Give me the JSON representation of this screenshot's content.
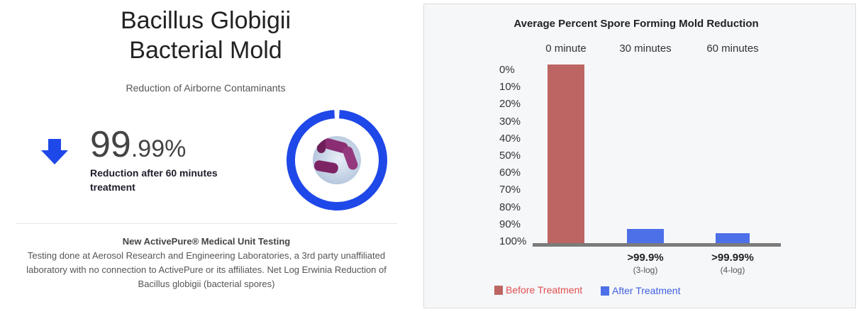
{
  "left": {
    "title_line1": "Bacillus Globigii",
    "title_line2": "Bacterial Mold",
    "subtitle": "Reduction of Airborne Contaminants",
    "stat_whole": "99",
    "stat_fraction": ".99%",
    "stat_label": "Reduction after 60 minutes treatment",
    "note_title": "New ActivePure® Medical Unit Testing",
    "note_body": "Testing done at Aerosol Research and Engineering Laboratories, a 3rd party unaffiliated laboratory with no connection to ActivePure or its affiliates. Net Log Erwinia Reduction of Bacillus globigii (bacterial spores)",
    "ring_fill_percent": 99.99,
    "colors": {
      "accent": "#1f48e8"
    }
  },
  "chart_data": {
    "type": "bar",
    "title": "Average Percent Spore Forming Mold Reduction",
    "categories": [
      "0 minute",
      "30 minutes",
      "60 minutes"
    ],
    "y_ticks": [
      "0%",
      "10%",
      "20%",
      "30%",
      "40%",
      "50%",
      "60%",
      "70%",
      "80%",
      "90%",
      "100%"
    ],
    "y_inverted": true,
    "ylim": [
      0,
      100
    ],
    "series": [
      {
        "name": "Before Treatment",
        "color": "#bd6562",
        "values": [
          0,
          null,
          null
        ]
      },
      {
        "name": "After Treatment",
        "color": "#4d6fe8",
        "values": [
          null,
          99.9,
          99.99
        ]
      }
    ],
    "data_labels": [
      {
        "value": "",
        "sub": ""
      },
      {
        "value": ">99.9%",
        "sub": "(3-log)"
      },
      {
        "value": ">99.99%",
        "sub": "(4-log)"
      }
    ],
    "legend_position": "bottom-left",
    "grid": false
  }
}
